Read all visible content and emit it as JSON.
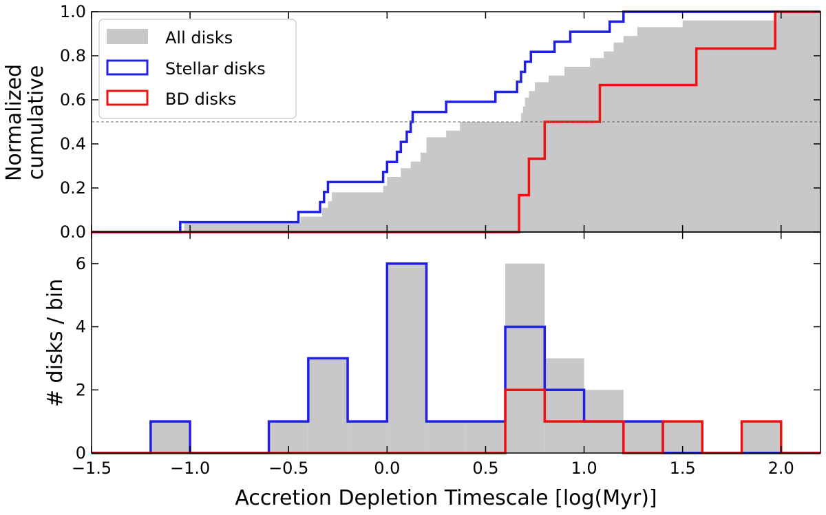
{
  "chart_data": [
    {
      "type": "step",
      "panel": "top",
      "ylabel_lines": [
        "Normalized",
        "cumulative"
      ],
      "xlim": [
        -1.5,
        2.2
      ],
      "ylim": [
        0,
        1
      ],
      "yticks": [
        0.0,
        0.2,
        0.4,
        0.6,
        0.8,
        1.0
      ],
      "ytick_labels": [
        "0.0",
        "0.2",
        "0.4",
        "0.6",
        "0.8",
        "1.0"
      ],
      "reference_line": 0.5,
      "legend_position": "upper-left",
      "legend": [
        {
          "label": "All disks",
          "style": "fill",
          "color": "#c8c8c8"
        },
        {
          "label": "Stellar disks",
          "style": "outline",
          "color": "#1f1fe6"
        },
        {
          "label": "BD disks",
          "style": "outline",
          "color": "#ee1111"
        }
      ],
      "series": [
        {
          "name": "All disks",
          "style": "fill",
          "color": "#c8c8c8",
          "steps": [
            [
              -1.06,
              0.0
            ],
            [
              -1.03,
              0.04
            ],
            [
              -0.44,
              0.07
            ],
            [
              -0.33,
              0.11
            ],
            [
              -0.3,
              0.14
            ],
            [
              -0.28,
              0.18
            ],
            [
              -0.02,
              0.21
            ],
            [
              0.0,
              0.25
            ],
            [
              0.07,
              0.29
            ],
            [
              0.12,
              0.32
            ],
            [
              0.17,
              0.36
            ],
            [
              0.2,
              0.43
            ],
            [
              0.3,
              0.46
            ],
            [
              0.37,
              0.5
            ],
            [
              0.68,
              0.54
            ],
            [
              0.69,
              0.57
            ],
            [
              0.7,
              0.61
            ],
            [
              0.72,
              0.64
            ],
            [
              0.75,
              0.68
            ],
            [
              0.82,
              0.71
            ],
            [
              0.9,
              0.75
            ],
            [
              1.03,
              0.79
            ],
            [
              1.1,
              0.82
            ],
            [
              1.15,
              0.86
            ],
            [
              1.2,
              0.89
            ],
            [
              1.27,
              0.93
            ],
            [
              1.5,
              0.96
            ],
            [
              1.97,
              1.0
            ]
          ]
        },
        {
          "name": "Stellar disks",
          "style": "outline",
          "color": "#1f1fe6",
          "steps": [
            [
              -1.05,
              0.045
            ],
            [
              -0.45,
              0.091
            ],
            [
              -0.34,
              0.136
            ],
            [
              -0.32,
              0.182
            ],
            [
              -0.3,
              0.227
            ],
            [
              -0.02,
              0.273
            ],
            [
              0.0,
              0.318
            ],
            [
              0.05,
              0.364
            ],
            [
              0.07,
              0.409
            ],
            [
              0.1,
              0.455
            ],
            [
              0.12,
              0.5
            ],
            [
              0.13,
              0.545
            ],
            [
              0.3,
              0.591
            ],
            [
              0.55,
              0.636
            ],
            [
              0.66,
              0.682
            ],
            [
              0.68,
              0.727
            ],
            [
              0.7,
              0.773
            ],
            [
              0.73,
              0.818
            ],
            [
              0.85,
              0.864
            ],
            [
              0.93,
              0.909
            ],
            [
              1.13,
              0.955
            ],
            [
              1.2,
              1.0
            ]
          ]
        },
        {
          "name": "BD disks",
          "style": "outline",
          "color": "#ee1111",
          "steps": [
            [
              0.67,
              0.167
            ],
            [
              0.72,
              0.333
            ],
            [
              0.8,
              0.5
            ],
            [
              1.08,
              0.667
            ],
            [
              1.57,
              0.833
            ],
            [
              1.97,
              1.0
            ]
          ]
        }
      ]
    },
    {
      "type": "histogram",
      "panel": "bottom",
      "ylabel": "# disks / bin",
      "xlabel": "Accretion Depletion Timescale [log(Myr)]",
      "xlim": [
        -1.5,
        2.2
      ],
      "ylim": [
        0,
        7
      ],
      "xticks": [
        -1.5,
        -1.0,
        -0.5,
        0.0,
        0.5,
        1.0,
        1.5,
        2.0
      ],
      "xtick_labels": [
        "−1.5",
        "−1.0",
        "−0.5",
        "0.0",
        "0.5",
        "1.0",
        "1.5",
        "2.0"
      ],
      "yticks": [
        0,
        2,
        4,
        6
      ],
      "ytick_labels": [
        "0",
        "2",
        "4",
        "6"
      ],
      "bins": [
        -1.2,
        -1.0,
        -0.8,
        -0.6,
        -0.4,
        -0.2,
        0.0,
        0.2,
        0.4,
        0.6,
        0.8,
        1.0,
        1.2,
        1.4,
        1.6,
        1.8,
        2.0
      ],
      "series": [
        {
          "name": "All disks",
          "style": "fill",
          "color": "#c8c8c8",
          "counts": [
            1,
            0,
            0,
            1,
            3,
            1,
            6,
            1,
            1,
            6,
            3,
            2,
            1,
            1,
            0,
            1
          ]
        },
        {
          "name": "Stellar disks",
          "style": "outline",
          "color": "#1f1fe6",
          "counts": [
            1,
            0,
            0,
            1,
            3,
            1,
            6,
            1,
            1,
            4,
            2,
            1,
            1,
            0,
            0,
            0
          ]
        },
        {
          "name": "BD disks",
          "style": "outline",
          "color": "#ee1111",
          "counts": [
            0,
            0,
            0,
            0,
            0,
            0,
            0,
            0,
            0,
            2,
            1,
            1,
            0,
            1,
            0,
            1
          ]
        }
      ]
    }
  ]
}
